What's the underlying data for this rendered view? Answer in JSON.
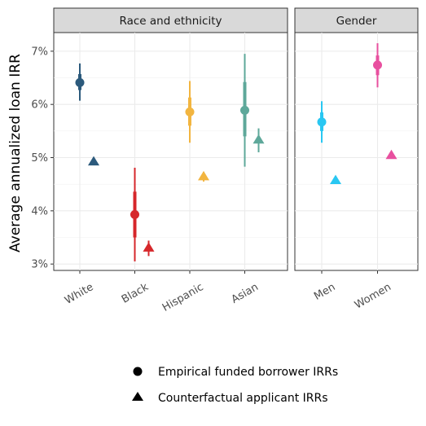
{
  "chart_data": {
    "type": "scatter",
    "ylabel": "Average annualized loan IRR",
    "ylim": [
      2.88,
      7.35
    ],
    "yticks": [
      3,
      4,
      5,
      6,
      7
    ],
    "ytick_labels": [
      "3%",
      "4%",
      "5%",
      "6%",
      "7%"
    ],
    "grid": true,
    "legend_position": "bottom",
    "legend": [
      {
        "shape": "circle",
        "label": "Empirical funded borrower IRRs"
      },
      {
        "shape": "triangle",
        "label": "Counterfactual applicant IRRs"
      }
    ],
    "panels": [
      {
        "strip": "Race and ethnicity",
        "categories": [
          "White",
          "Black",
          "Hispanic",
          "Asian"
        ],
        "colors": [
          "#2c5a7c",
          "#d6272b",
          "#f2b540",
          "#5ea89a"
        ],
        "empirical": {
          "values": [
            6.41,
            3.93,
            5.86,
            5.89
          ],
          "inner_interval": [
            [
              6.27,
              6.57
            ],
            [
              3.5,
              4.36
            ],
            [
              5.6,
              6.13
            ],
            [
              5.4,
              6.42
            ]
          ],
          "outer_interval": [
            [
              6.07,
              6.77
            ],
            [
              3.05,
              4.81
            ],
            [
              5.28,
              6.44
            ],
            [
              4.83,
              6.95
            ]
          ]
        },
        "counterfactual": {
          "values": [
            4.93,
            3.31,
            4.65,
            5.34
          ],
          "interval": [
            [
              4.87,
              4.99
            ],
            [
              3.15,
              3.44
            ],
            [
              4.55,
              4.73
            ],
            [
              5.1,
              5.55
            ]
          ]
        }
      },
      {
        "strip": "Gender",
        "categories": [
          "Men",
          "Women"
        ],
        "colors": [
          "#29c7f2",
          "#e8509f"
        ],
        "empirical": {
          "values": [
            5.67,
            6.74
          ],
          "inner_interval": [
            [
              5.5,
              5.85
            ],
            [
              6.55,
              6.92
            ]
          ],
          "outer_interval": [
            [
              5.28,
              6.06
            ],
            [
              6.32,
              7.15
            ]
          ]
        },
        "counterfactual": {
          "values": [
            4.58,
            5.05
          ],
          "interval": [
            [
              4.52,
              4.63
            ],
            [
              4.98,
              5.11
            ]
          ]
        }
      }
    ]
  }
}
